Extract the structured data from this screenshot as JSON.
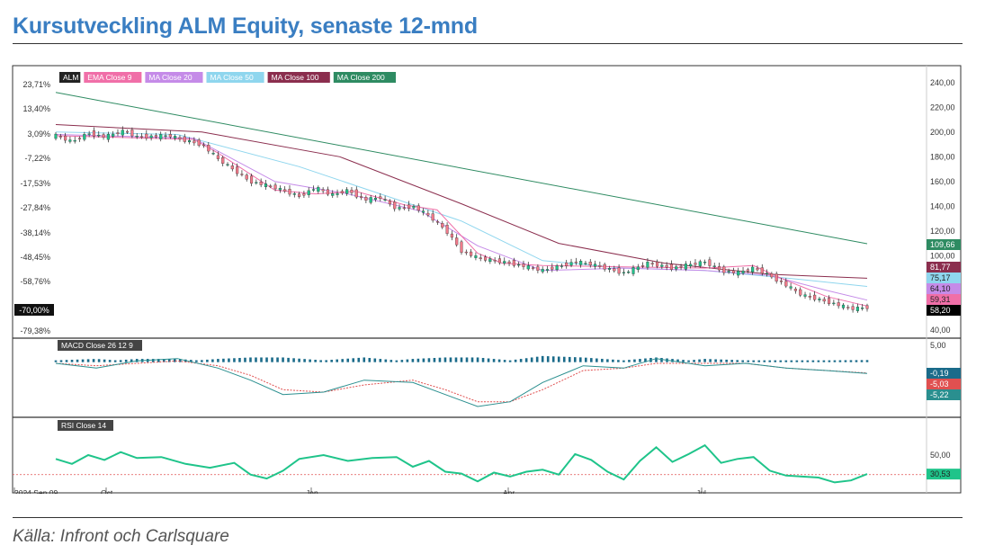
{
  "title": "Kursutveckling ALM Equity, senaste 12-mnd",
  "source": "Källa: Infront och Carlsquare",
  "chart_data": {
    "type": "line",
    "price_panel": {
      "legend": [
        {
          "label": "ALM",
          "color": "#222222",
          "text_color": "#ffffff"
        },
        {
          "label": "EMA Close 9",
          "color": "#f06fa8",
          "text_color": "#ffffff"
        },
        {
          "label": "MA Close 20",
          "color": "#c58be8",
          "text_color": "#ffffff"
        },
        {
          "label": "MA Close 50",
          "color": "#8fd6ee",
          "text_color": "#ffffff"
        },
        {
          "label": "MA Close 100",
          "color": "#8b2e4e",
          "text_color": "#ffffff"
        },
        {
          "label": "MA Close 200",
          "color": "#2e8b62",
          "text_color": "#ffffff"
        }
      ],
      "left_axis_ticks": [
        "23,71%",
        "13,40%",
        "3,09%",
        "-7,22%",
        "-17,53%",
        "-27,84%",
        "-38,14%",
        "-48,45%",
        "-58,76%",
        "-70,00%",
        "-79,38%"
      ],
      "right_axis_ticks": [
        "240,00",
        "220,00",
        "200,00",
        "180,00",
        "160,00",
        "140,00",
        "120,00",
        "100,00",
        "40,00"
      ],
      "ylim": [
        37,
        250
      ],
      "last_values": [
        {
          "label": "109,66",
          "value": 109.66,
          "color": "#2e8b62"
        },
        {
          "label": "81,77",
          "value": 81.77,
          "color": "#8b2e4e"
        },
        {
          "label": "75,17",
          "value": 75.17,
          "color": "#8fd6ee"
        },
        {
          "label": "64,10",
          "value": 64.1,
          "color": "#c58be8"
        },
        {
          "label": "59,31",
          "value": 59.31,
          "color": "#f06fa8"
        },
        {
          "label": "58,20",
          "value": 58.2,
          "color": "#000000"
        }
      ],
      "current_change_label": "-70,00%",
      "series": [
        {
          "key": "ma200",
          "color": "#2e8b62",
          "x": [
            0,
            1
          ],
          "values": [
            232,
            109.66
          ]
        },
        {
          "key": "ma100",
          "color": "#8b2e4e",
          "x": [
            0,
            0.18,
            0.35,
            0.5,
            0.62,
            0.75,
            0.88,
            1
          ],
          "values": [
            206,
            200,
            180,
            142,
            110,
            94,
            85,
            81.77
          ]
        },
        {
          "key": "ma50",
          "color": "#8fd6ee",
          "x": [
            0,
            0.15,
            0.3,
            0.4,
            0.5,
            0.6,
            0.7,
            0.8,
            0.9,
            1
          ],
          "values": [
            200,
            198,
            172,
            150,
            128,
            96,
            90,
            88,
            82,
            75.17
          ]
        },
        {
          "key": "ma20",
          "color": "#c58be8",
          "x": [
            0,
            0.17,
            0.27,
            0.36,
            0.45,
            0.52,
            0.6,
            0.7,
            0.8,
            0.88,
            0.95,
            1
          ],
          "values": [
            198,
            195,
            160,
            150,
            136,
            108,
            88,
            90,
            88,
            84,
            72,
            64.1
          ]
        },
        {
          "key": "ema9",
          "color": "#f06fa8",
          "x": [
            0,
            0.17,
            0.2,
            0.27,
            0.32,
            0.37,
            0.43,
            0.47,
            0.52,
            0.55,
            0.6,
            0.7,
            0.8,
            0.86,
            0.9,
            0.95,
            1
          ],
          "values": [
            197,
            194,
            183,
            153,
            150,
            152,
            141,
            137,
            102,
            94,
            92,
            91,
            90,
            92,
            80,
            67,
            59.31
          ]
        },
        {
          "key": "close",
          "color": "#1fc48a",
          "x": [
            0,
            0.02,
            0.04,
            0.06,
            0.085,
            0.1,
            0.14,
            0.16,
            0.18,
            0.2,
            0.24,
            0.27,
            0.3,
            0.32,
            0.34,
            0.36,
            0.38,
            0.4,
            0.42,
            0.44,
            0.46,
            0.48,
            0.5,
            0.52,
            0.54,
            0.56,
            0.6,
            0.64,
            0.66,
            0.7,
            0.73,
            0.76,
            0.8,
            0.82,
            0.84,
            0.86,
            0.88,
            0.9,
            0.92,
            0.95,
            0.98,
            1
          ],
          "values": [
            197,
            192,
            199,
            196,
            201,
            196,
            197,
            193,
            190,
            178,
            160,
            155,
            148,
            155,
            149,
            153,
            145,
            147,
            138,
            140,
            132,
            121,
            104,
            98,
            96,
            94,
            88,
            95,
            93,
            86,
            94,
            90,
            95,
            88,
            86,
            90,
            84,
            76,
            68,
            63,
            57,
            58.2
          ]
        }
      ]
    },
    "macd_panel": {
      "legend": "MACD Close 26 12 9",
      "axis_tick": "5,00",
      "ylim": [
        -22,
        8
      ],
      "last_values": [
        {
          "label": "-0,19",
          "value": -0.19,
          "color": "#1a6b8a"
        },
        {
          "label": "-5,03",
          "value": -5.03,
          "color": "#e05050"
        },
        {
          "label": "-5,22",
          "value": -5.22,
          "color": "#2a8f8f"
        }
      ],
      "macd": {
        "x": [
          0,
          0.05,
          0.1,
          0.15,
          0.2,
          0.24,
          0.28,
          0.33,
          0.38,
          0.44,
          0.48,
          0.52,
          0.56,
          0.6,
          0.65,
          0.7,
          0.74,
          0.8,
          0.85,
          0.9,
          0.95,
          1
        ],
        "values": [
          -1,
          -3,
          0,
          1,
          -3,
          -8,
          -14,
          -13,
          -8,
          -9,
          -14,
          -19,
          -17,
          -9,
          -2,
          -3,
          1,
          -2,
          -1,
          -3,
          -4,
          -5.22
        ]
      },
      "signal": {
        "x": [
          0,
          0.05,
          0.1,
          0.15,
          0.2,
          0.24,
          0.28,
          0.33,
          0.38,
          0.44,
          0.48,
          0.52,
          0.56,
          0.6,
          0.65,
          0.7,
          0.74,
          0.8,
          0.85,
          0.9,
          0.95,
          1
        ],
        "values": [
          -1,
          -2,
          -1,
          0,
          -2,
          -6,
          -12,
          -13,
          -10,
          -8,
          -12,
          -17,
          -17,
          -12,
          -4,
          -3,
          -1,
          -1,
          -1,
          -3,
          -4,
          -5.03
        ]
      }
    },
    "rsi_panel": {
      "legend": "RSI Close 14",
      "axis_tick": "50,00",
      "ylim": [
        15,
        85
      ],
      "reference": 30,
      "last_value": {
        "label": "30,53",
        "value": 30.53
      },
      "x": [
        0,
        0.02,
        0.04,
        0.06,
        0.08,
        0.1,
        0.13,
        0.16,
        0.19,
        0.22,
        0.24,
        0.26,
        0.28,
        0.3,
        0.33,
        0.36,
        0.39,
        0.42,
        0.44,
        0.46,
        0.48,
        0.5,
        0.52,
        0.54,
        0.56,
        0.58,
        0.6,
        0.62,
        0.64,
        0.66,
        0.68,
        0.7,
        0.72,
        0.74,
        0.76,
        0.78,
        0.8,
        0.82,
        0.84,
        0.86,
        0.88,
        0.9,
        0.92,
        0.94,
        0.96,
        0.98,
        1
      ],
      "values": [
        46,
        41,
        50,
        45,
        53,
        47,
        48,
        41,
        37,
        42,
        30,
        26,
        34,
        46,
        50,
        44,
        47,
        48,
        38,
        44,
        33,
        31,
        23,
        32,
        28,
        33,
        35,
        30,
        51,
        45,
        33,
        25,
        44,
        58,
        43,
        51,
        60,
        42,
        46,
        48,
        34,
        29,
        28,
        27,
        22,
        24,
        30.53
      ]
    },
    "x_axis_labels": [
      "2024 Sep 09",
      "Oct",
      "Jan",
      "Apr",
      "Jul"
    ]
  }
}
